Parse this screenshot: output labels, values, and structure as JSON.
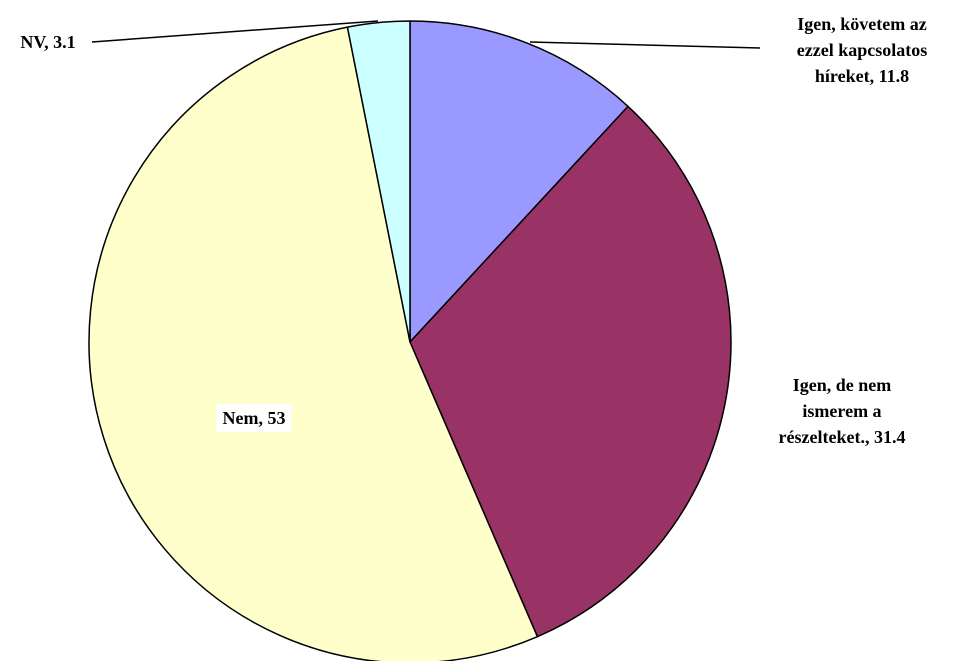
{
  "chart_data": {
    "type": "pie",
    "title": "",
    "start_angle_deg": 0,
    "direction": "clockwise",
    "slices": [
      {
        "label_lines": [
          "Igen, követem az",
          "ezzel kapcsolatos",
          "híreket, 11.8"
        ],
        "name": "Igen, követem az ezzel kapcsolatos híreket",
        "value": 11.8,
        "color": "#9999ff"
      },
      {
        "label_lines": [
          "Igen, de nem",
          "ismerem a",
          "részelteket., 31.4"
        ],
        "name": "Igen, de nem ismerem a részelteket.",
        "value": 31.4,
        "color": "#993366"
      },
      {
        "label_lines": [
          "Nem, 53"
        ],
        "name": "Nem",
        "value": 53,
        "color": "#ffffcc"
      },
      {
        "label_lines": [
          "NV, 3.1"
        ],
        "name": "NV",
        "value": 3.1,
        "color": "#ccffff"
      }
    ],
    "legend": "none"
  }
}
